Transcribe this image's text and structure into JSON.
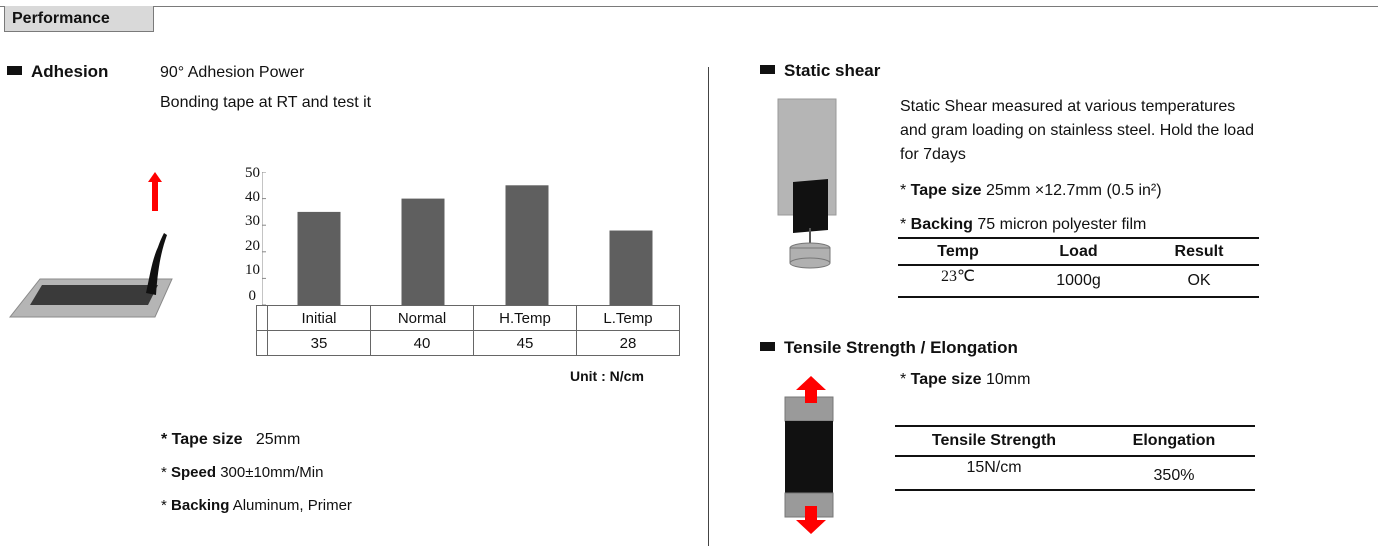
{
  "header": {
    "section_title": "Performance"
  },
  "adhesion": {
    "heading": "Adhesion",
    "test_name": "90° Adhesion Power",
    "description": "Bonding tape at RT and test it",
    "unit": "Unit : N/cm",
    "specs": [
      {
        "label": "Tape size",
        "value": "25mm"
      },
      {
        "label": "Speed",
        "value": "300±10mm/Min"
      },
      {
        "label": "Backing",
        "value": "Aluminum, Primer"
      }
    ]
  },
  "chart_data": {
    "type": "bar",
    "categories": [
      "Initial",
      "Normal",
      "H.Temp",
      "L.Temp"
    ],
    "values": [
      35,
      40,
      45,
      28
    ],
    "value_labels": [
      "35",
      "40",
      "45",
      "28"
    ],
    "ylim": [
      0,
      50
    ],
    "yticks": [
      "0",
      "10",
      "20",
      "30",
      "40",
      "50"
    ],
    "bar_color": "#5f5f5f",
    "grid": false
  },
  "static_shear": {
    "heading": "Static shear",
    "description": [
      "Static Shear measured at various temperatures",
      "and gram loading on stainless steel. Hold the load",
      "for 7days"
    ],
    "specs": [
      {
        "label": "Tape size",
        "value": "25mm ×12.7mm (0.5 in²)"
      },
      {
        "label": "Backing",
        "value": "75 micron polyester film"
      }
    ],
    "table": {
      "headers": [
        "Temp",
        "Load",
        "Result"
      ],
      "row": [
        "23℃",
        "1000g",
        "OK"
      ]
    }
  },
  "tensile": {
    "heading": "Tensile Strength / Elongation",
    "spec": {
      "label": "Tape size",
      "value": "10mm"
    },
    "table": {
      "headers": [
        "Tensile Strength",
        "Elongation"
      ],
      "row": [
        "15N/cm",
        "350%"
      ]
    }
  },
  "colors": {
    "accent_arrow": "#ff0000",
    "bar": "#5f5f5f",
    "tab_bg": "#d9d9d9"
  }
}
